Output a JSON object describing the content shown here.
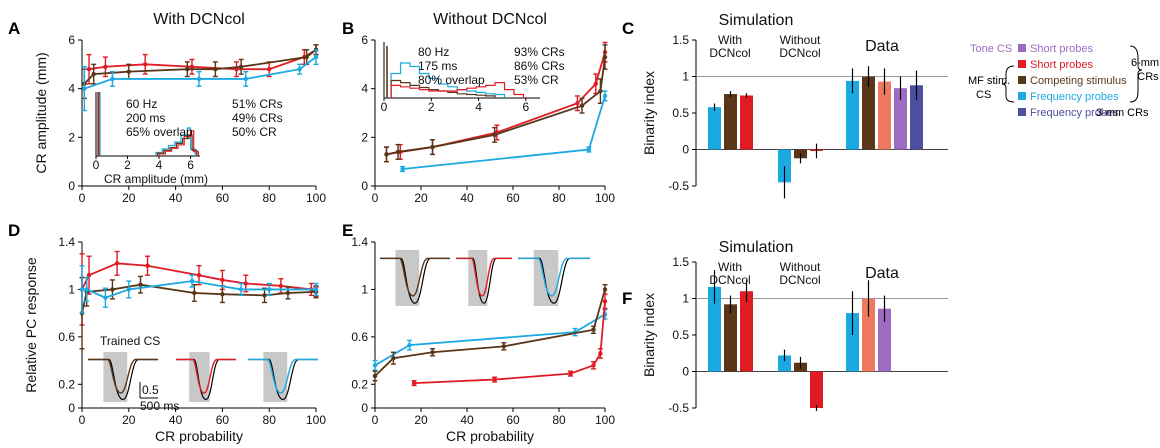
{
  "colors": {
    "blue": "#1ba9e2",
    "red": "#e01b24",
    "brown": "#5a3618",
    "salmon": "#ee7a5e",
    "purple": "#9d6cc2",
    "navy": "#4c4ea0",
    "gray_box": "#c8c8c8"
  },
  "panel_labels": [
    "A",
    "B",
    "C",
    "D",
    "E",
    "F"
  ],
  "sim_labels": {
    "simulation": "Simulation",
    "with": "With",
    "without": "Without",
    "dcncol": "DCNcol",
    "data": "Data"
  },
  "legend": {
    "items": [
      {
        "label": "Tone CS",
        "color": "#9d6cc2"
      },
      {
        "label": "Short probes",
        "color": "#9d6cc2"
      },
      {
        "label": "Short probes",
        "color": "#e01b24"
      },
      {
        "label": "Competing stimulus",
        "color": "#5a3618"
      },
      {
        "label": "Frequency probes",
        "color": "#1ba9e2"
      },
      {
        "label": "Frequency probes",
        "color": "#4c4ea0"
      }
    ],
    "mf_label": "MF stim.",
    "cs_label": "CS",
    "six_mm": "6-mm",
    "crs": "CRs",
    "three_mm": "3-mm CRs"
  },
  "chart_data": [
    {
      "id": "A",
      "type": "line",
      "title": "With DCNcol",
      "xlabel": "",
      "ylabel": "CR amplitude (mm)",
      "xlim": [
        0,
        100
      ],
      "ylim": [
        0,
        6
      ],
      "xticks": [
        0,
        20,
        40,
        60,
        80,
        100
      ],
      "yticks": [
        0,
        2,
        4,
        6
      ],
      "series": [
        {
          "color": "red",
          "x": [
            3,
            10,
            27,
            47,
            66,
            80,
            95,
            100
          ],
          "y": [
            4.8,
            4.9,
            5.0,
            4.9,
            4.8,
            4.8,
            5.3,
            5.6
          ],
          "err": [
            0.6,
            0.4,
            0.4,
            0.3,
            0.3,
            0.3,
            0.3,
            0.2
          ]
        },
        {
          "color": "brown",
          "x": [
            1,
            5,
            20,
            45,
            57,
            68,
            96,
            100
          ],
          "y": [
            4.2,
            4.6,
            4.7,
            4.8,
            4.8,
            4.9,
            5.3,
            5.6
          ],
          "err": [
            0.6,
            0.4,
            0.3,
            0.3,
            0.3,
            0.3,
            0.3,
            0.2
          ]
        },
        {
          "color": "blue",
          "x": [
            1,
            13,
            50,
            70,
            93,
            100
          ],
          "y": [
            4.0,
            4.4,
            4.4,
            4.4,
            4.8,
            5.3
          ],
          "err": [
            0.9,
            0.3,
            0.3,
            0.3,
            0.2,
            0.3
          ]
        }
      ],
      "inset": {
        "xlabel": "CR amplitude (mm)",
        "xticks": [
          0,
          2,
          4,
          6
        ],
        "lines": [
          {
            "text": "60 Hz",
            "color": "blue"
          },
          {
            "text": "200 ms",
            "color": "red"
          },
          {
            "text": "65% overlap",
            "color": "brown"
          }
        ],
        "lines_right": [
          {
            "text": "51% CRs",
            "color": "blue"
          },
          {
            "text": "49% CRs",
            "color": "red"
          },
          {
            "text": "50% CR",
            "color": "brown"
          }
        ]
      }
    },
    {
      "id": "B",
      "type": "line",
      "title": "Without DCNcol",
      "xlabel": "",
      "ylabel": "",
      "xlim": [
        0,
        100
      ],
      "ylim": [
        0,
        6
      ],
      "xticks": [
        0,
        20,
        40,
        60,
        80,
        100
      ],
      "yticks": [
        0,
        2,
        4,
        6
      ],
      "series": [
        {
          "color": "red",
          "x": [
            5,
            11,
            25,
            53,
            88,
            96,
            100
          ],
          "y": [
            1.3,
            1.4,
            1.6,
            2.2,
            3.4,
            4.2,
            5.5
          ],
          "err": [
            0.3,
            0.3,
            0.3,
            0.3,
            0.3,
            0.4,
            0.4
          ]
        },
        {
          "color": "brown",
          "x": [
            5,
            10,
            25,
            52,
            90,
            98,
            100
          ],
          "y": [
            1.3,
            1.4,
            1.6,
            2.1,
            3.3,
            3.9,
            5.3
          ],
          "err": [
            0.3,
            0.3,
            0.3,
            0.3,
            0.3,
            0.5,
            0.5
          ]
        },
        {
          "color": "blue",
          "x": [
            12,
            93,
            100
          ],
          "y": [
            0.7,
            1.5,
            3.7
          ],
          "err": [
            0.1,
            0.1,
            0.2
          ]
        }
      ],
      "inset": {
        "xlabel": "",
        "xticks": [
          0,
          2,
          4,
          6
        ],
        "lines": [
          {
            "text": "80 Hz",
            "color": "blue"
          },
          {
            "text": "175 ms",
            "color": "red"
          },
          {
            "text": "80% overlap",
            "color": "brown"
          }
        ],
        "lines_right": [
          {
            "text": "93% CRs",
            "color": "blue"
          },
          {
            "text": "86% CRs",
            "color": "red"
          },
          {
            "text": "53% CR",
            "color": "brown"
          }
        ]
      }
    },
    {
      "id": "C",
      "type": "bar",
      "ylabel": "Binarity index",
      "ylim": [
        -0.5,
        1.5
      ],
      "yticks": [
        -0.5,
        0,
        0.5,
        1,
        1.5
      ],
      "bars": [
        {
          "group": "with",
          "color": "blue",
          "value": 0.58,
          "err": 0.05
        },
        {
          "group": "with",
          "color": "brown",
          "value": 0.76,
          "err": 0.04
        },
        {
          "group": "with",
          "color": "red",
          "value": 0.74,
          "err": 0.03
        },
        {
          "group": "without",
          "color": "blue",
          "value": -0.45,
          "err": 0.22
        },
        {
          "group": "without",
          "color": "brown",
          "value": -0.12,
          "err": 0.07
        },
        {
          "group": "without",
          "color": "red",
          "value": -0.02,
          "err": 0.1
        },
        {
          "group": "data",
          "color": "blue",
          "value": 0.94,
          "err": 0.17
        },
        {
          "group": "data",
          "color": "brown",
          "value": 1.0,
          "err": 0.14
        },
        {
          "group": "data",
          "color": "salmon",
          "value": 0.93,
          "err": 0.18
        },
        {
          "group": "data",
          "color": "purple",
          "value": 0.84,
          "err": 0.16
        },
        {
          "group": "data",
          "color": "navy",
          "value": 0.88,
          "err": 0.2
        }
      ]
    },
    {
      "id": "D",
      "type": "line",
      "xlabel": "CR probability",
      "ylabel": "Relative PC response",
      "xlim": [
        0,
        100
      ],
      "ylim": [
        0,
        1.4
      ],
      "xticks": [
        0,
        20,
        40,
        60,
        80,
        100
      ],
      "yticks": [
        0,
        0.2,
        0.6,
        1,
        1.4
      ],
      "series": [
        {
          "color": "red",
          "x": [
            0,
            3,
            15,
            28,
            50,
            60,
            70,
            85,
            98,
            100
          ],
          "y": [
            1.0,
            1.12,
            1.22,
            1.2,
            1.12,
            1.08,
            1.05,
            1.03,
            1.0,
            0.98
          ],
          "err": [
            0.3,
            0.16,
            0.1,
            0.08,
            0.08,
            0.08,
            0.07,
            0.06,
            0.05,
            0.04
          ]
        },
        {
          "color": "brown",
          "x": [
            0,
            2,
            13,
            25,
            48,
            60,
            78,
            88,
            100
          ],
          "y": [
            0.8,
            0.98,
            1.0,
            1.04,
            0.97,
            0.96,
            0.95,
            0.97,
            0.98
          ],
          "err": [
            0.3,
            0.12,
            0.08,
            0.07,
            0.07,
            0.07,
            0.06,
            0.05,
            0.05
          ]
        },
        {
          "color": "blue",
          "x": [
            0,
            2,
            10,
            20,
            47,
            68,
            80,
            100
          ],
          "y": [
            1.0,
            1.0,
            0.93,
            1.0,
            1.07,
            1.0,
            1.0,
            1.0
          ],
          "err": [
            0.2,
            0.1,
            0.08,
            0.07,
            0.05,
            0.05,
            0.05,
            0.05
          ]
        }
      ],
      "inset_label": "Trained CS",
      "scale_y": "0.5",
      "scale_x": "500 ms"
    },
    {
      "id": "E",
      "type": "line",
      "xlabel": "CR probability",
      "ylabel": "",
      "xlim": [
        0,
        100
      ],
      "ylim": [
        0,
        1.4
      ],
      "xticks": [
        0,
        20,
        40,
        60,
        80,
        100
      ],
      "yticks": [
        0,
        0.2,
        0.6,
        1,
        1.4
      ],
      "series": [
        {
          "color": "blue",
          "x": [
            0,
            15,
            87,
            100
          ],
          "y": [
            0.36,
            0.53,
            0.64,
            0.79
          ],
          "err": [
            0.04,
            0.04,
            0.03,
            0.04
          ]
        },
        {
          "color": "brown",
          "x": [
            0,
            8,
            25,
            56,
            95,
            100
          ],
          "y": [
            0.27,
            0.42,
            0.47,
            0.52,
            0.66,
            1.0
          ],
          "err": [
            0.04,
            0.05,
            0.03,
            0.03,
            0.03,
            0.04
          ]
        },
        {
          "color": "red",
          "x": [
            17,
            52,
            85,
            95,
            98,
            100
          ],
          "y": [
            0.21,
            0.24,
            0.29,
            0.36,
            0.46,
            0.9
          ],
          "err": [
            0.02,
            0.02,
            0.02,
            0.03,
            0.04,
            0.06
          ]
        }
      ]
    },
    {
      "id": "F",
      "type": "bar",
      "ylabel": "Binarity index",
      "ylim": [
        -0.5,
        1.5
      ],
      "yticks": [
        -0.5,
        0,
        0.5,
        1,
        1.5
      ],
      "bars": [
        {
          "group": "with",
          "color": "blue",
          "value": 1.16,
          "err": 0.23
        },
        {
          "group": "with",
          "color": "brown",
          "value": 0.92,
          "err": 0.12
        },
        {
          "group": "with",
          "color": "red",
          "value": 1.1,
          "err": 0.15
        },
        {
          "group": "without",
          "color": "blue",
          "value": 0.22,
          "err": 0.08
        },
        {
          "group": "without",
          "color": "brown",
          "value": 0.12,
          "err": 0.08
        },
        {
          "group": "without",
          "color": "red",
          "value": -0.5,
          "err": 0.04
        },
        {
          "group": "data",
          "color": "blue",
          "value": 0.8,
          "err": 0.3
        },
        {
          "group": "data",
          "color": "salmon",
          "value": 1.0,
          "err": 0.25
        },
        {
          "group": "data",
          "color": "purple",
          "value": 0.86,
          "err": 0.18
        }
      ]
    }
  ]
}
